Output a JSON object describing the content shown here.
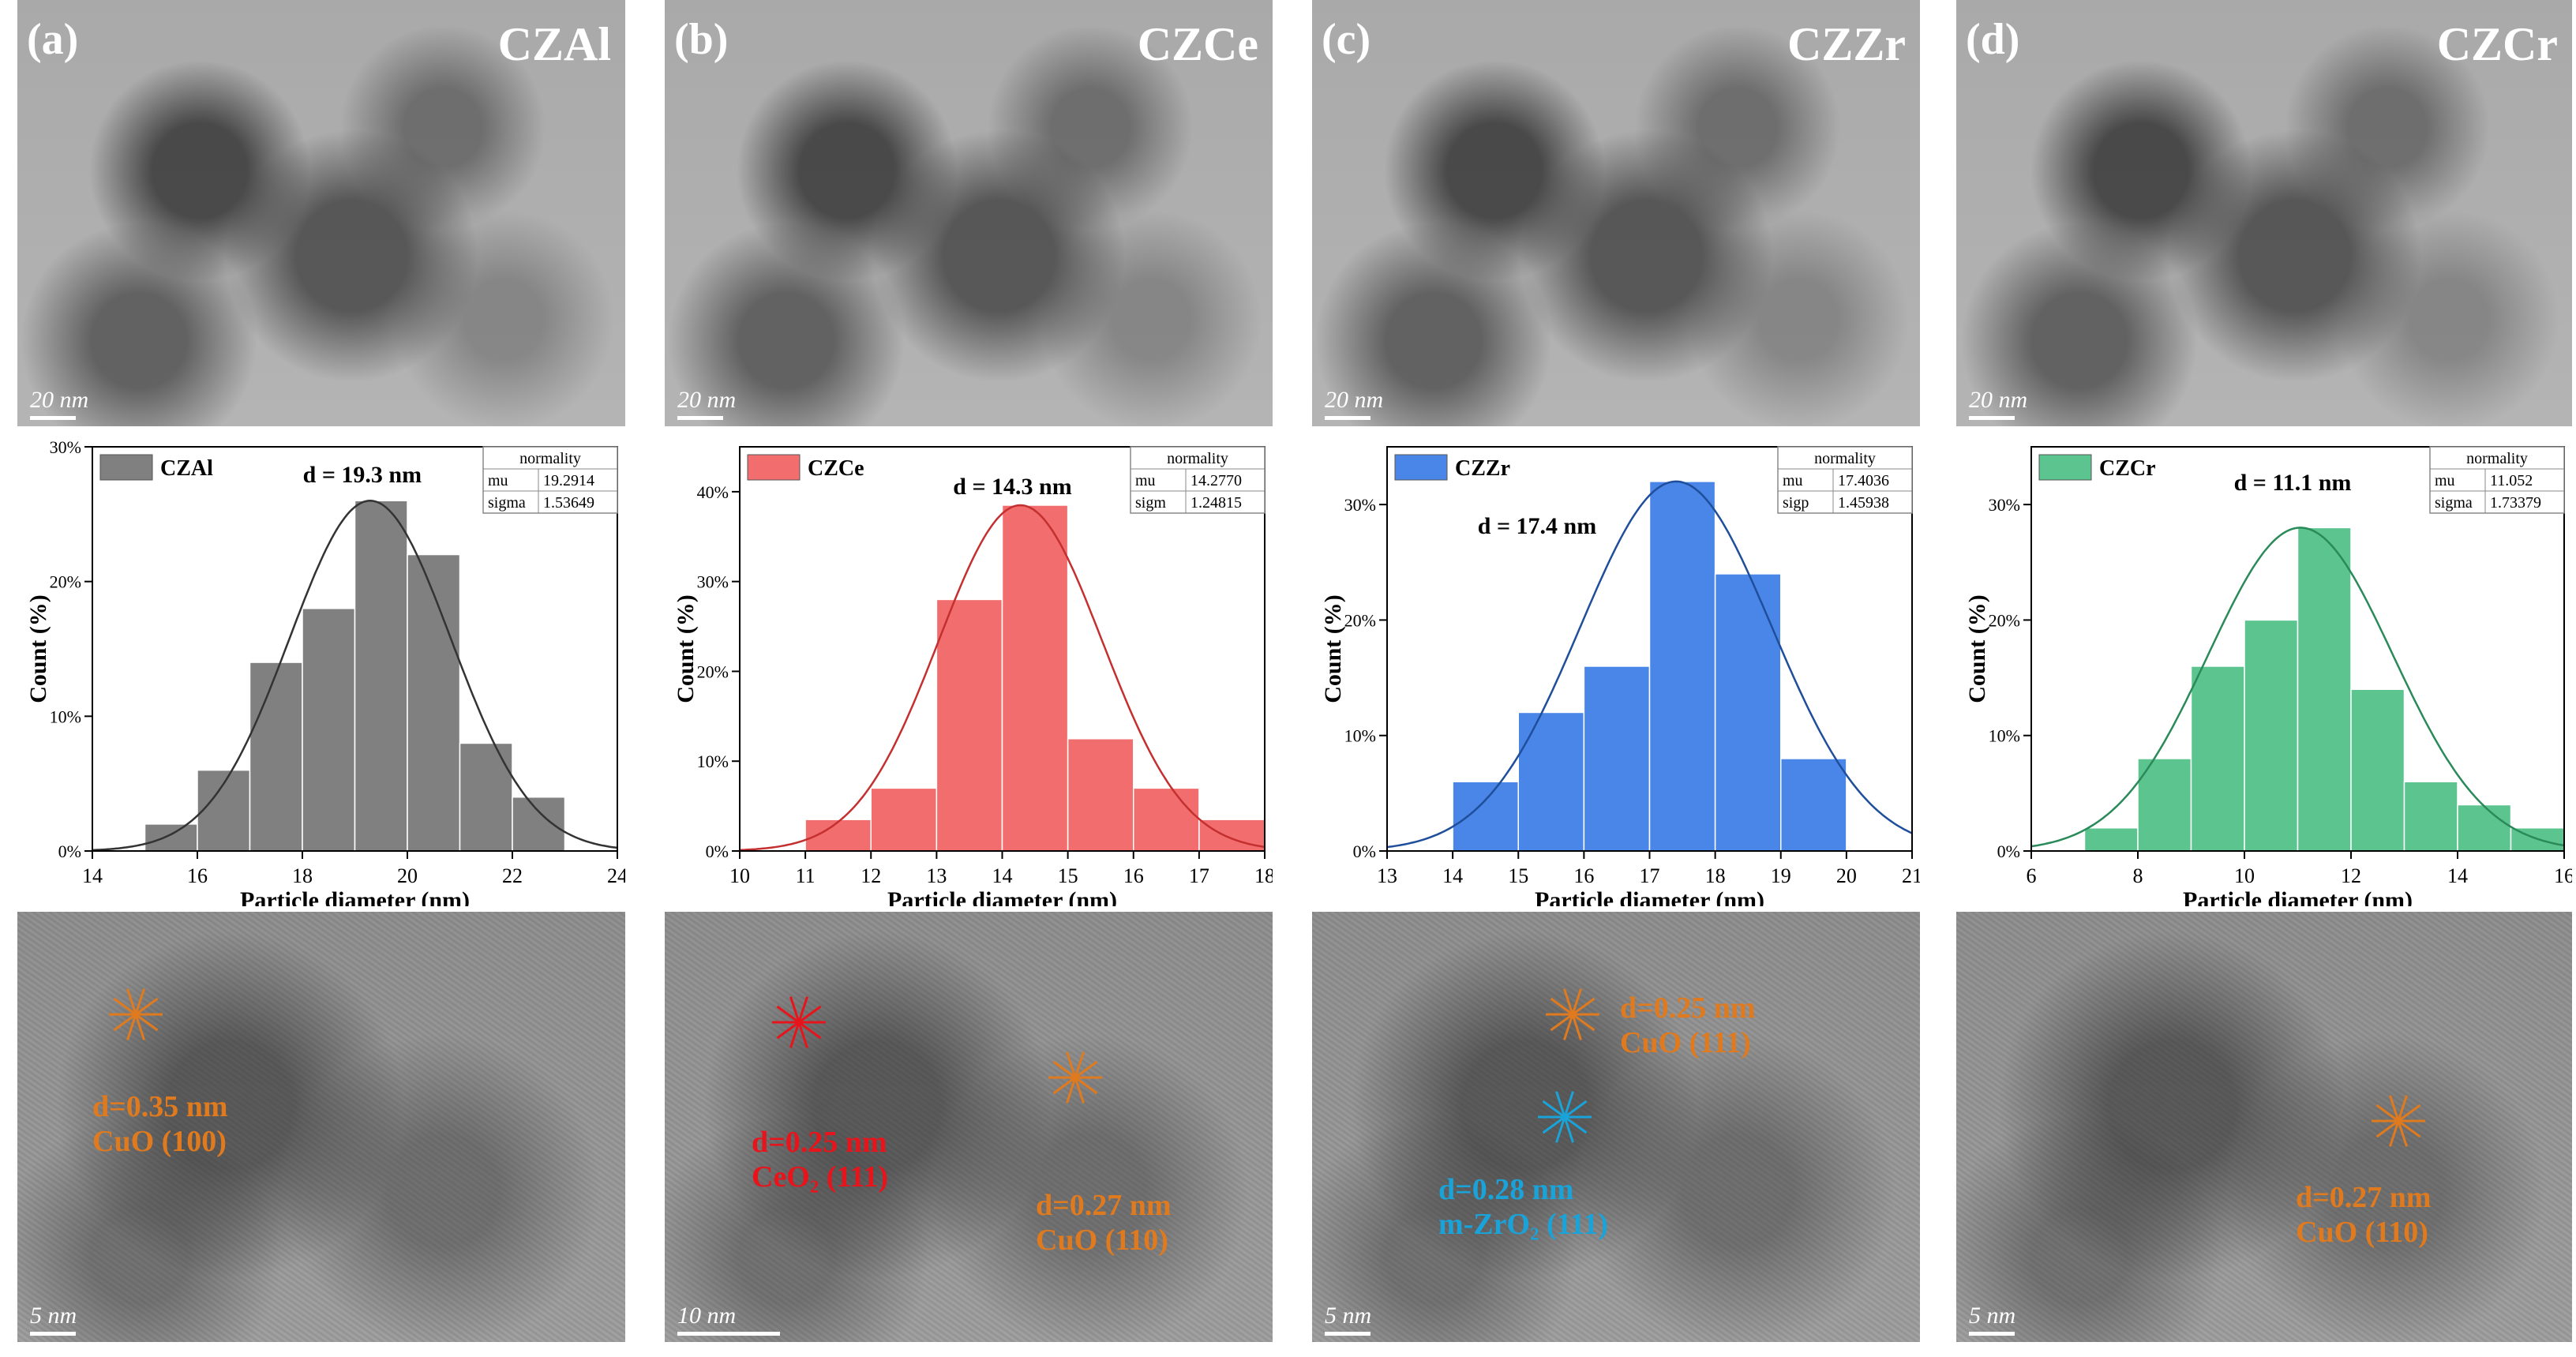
{
  "panels": [
    {
      "letter": "(a)",
      "sample": "CZAl",
      "tem_scale": "20 nm",
      "hrtem_scale": "5 nm",
      "annotations": [
        {
          "d": "d=0.35 nm",
          "plane": "CuO (100)",
          "color": "#e07a1f"
        }
      ]
    },
    {
      "letter": "(b)",
      "sample": "CZCe",
      "tem_scale": "20 nm",
      "hrtem_scale": "10 nm",
      "annotations": [
        {
          "d": "d=0.25 nm",
          "plane": "CeO₂ (111)",
          "color": "#e8141b"
        },
        {
          "d": "d=0.27 nm",
          "plane": "CuO (110)",
          "color": "#e07a1f"
        }
      ]
    },
    {
      "letter": "(c)",
      "sample": "CZZr",
      "tem_scale": "20 nm",
      "hrtem_scale": "5 nm",
      "annotations": [
        {
          "d": "d=0.25 nm",
          "plane": "CuO (111)",
          "color": "#e07a1f"
        },
        {
          "d": "d=0.28 nm",
          "plane": "m-ZrO₂ (111)",
          "color": "#1aa3d9"
        }
      ]
    },
    {
      "letter": "(d)",
      "sample": "CZCr",
      "tem_scale": "20 nm",
      "hrtem_scale": "5 nm",
      "annotations": [
        {
          "d": "d=0.27 nm",
          "plane": "CuO (110)",
          "color": "#e07a1f"
        }
      ]
    }
  ],
  "chart_data": [
    {
      "type": "bar",
      "legend": "CZAl",
      "color": "#808080",
      "line_color": "#333333",
      "annotation": "d = 19.3 nm",
      "table": {
        "header": "normality",
        "rows": [
          [
            "mu",
            "19.2914"
          ],
          [
            "sigma",
            "1.53649"
          ]
        ]
      },
      "bin_edges": [
        15,
        16,
        17,
        18,
        19,
        20,
        21,
        22,
        23
      ],
      "values": [
        2,
        6,
        14,
        18,
        26,
        22,
        8,
        4
      ],
      "fit": {
        "mu": 19.2914,
        "sigma": 1.53649,
        "peak": 26
      },
      "xlim": [
        14,
        24
      ],
      "xticks": [
        14,
        16,
        18,
        20,
        22,
        24
      ],
      "ylim": [
        0,
        30
      ],
      "yticks": [
        0,
        10,
        20,
        30
      ],
      "yticklabels": [
        "0%",
        "10%",
        "20%",
        "30%"
      ],
      "xlabel": "Particle diameter (nm)",
      "ylabel": "Count (%)"
    },
    {
      "type": "bar",
      "legend": "CZCe",
      "color": "#f26d6d",
      "line_color": "#c43030",
      "annotation": "d = 14.3 nm",
      "table": {
        "header": "normality",
        "rows": [
          [
            "mu",
            "14.2770"
          ],
          [
            "sigm",
            "1.24815"
          ]
        ]
      },
      "bin_edges": [
        11,
        12,
        13,
        14,
        15,
        16,
        17,
        18
      ],
      "values": [
        3.5,
        7,
        28,
        38.5,
        12.5,
        7,
        3.5
      ],
      "fit": {
        "mu": 14.277,
        "sigma": 1.24815,
        "peak": 38.5
      },
      "xlim": [
        10,
        18
      ],
      "xticks": [
        10,
        11,
        12,
        13,
        14,
        15,
        16,
        17,
        18
      ],
      "ylim": [
        0,
        45
      ],
      "yticks": [
        0,
        10,
        20,
        30,
        40
      ],
      "yticklabels": [
        "0%",
        "10%",
        "20%",
        "30%",
        "40%"
      ],
      "xlabel": "Particle diameter (nm)",
      "ylabel": "Count (%)"
    },
    {
      "type": "bar",
      "legend": "CZZr",
      "color": "#4a86e8",
      "line_color": "#1f4e9a",
      "annotation": "d = 17.4 nm",
      "table": {
        "header": "normality",
        "rows": [
          [
            "mu",
            "17.4036"
          ],
          [
            "sigp",
            "1.45938"
          ]
        ]
      },
      "bin_edges": [
        14,
        15,
        16,
        17,
        18,
        19,
        20
      ],
      "values": [
        6,
        12,
        16,
        32,
        24,
        8
      ],
      "fit": {
        "mu": 17.4036,
        "sigma": 1.45938,
        "peak": 32
      },
      "xlim": [
        13,
        21
      ],
      "xticks": [
        13,
        14,
        15,
        16,
        17,
        18,
        19,
        20,
        21
      ],
      "ylim": [
        0,
        35
      ],
      "yticks": [
        0,
        10,
        20,
        30
      ],
      "yticklabels": [
        "0%",
        "10%",
        "20%",
        "30%"
      ],
      "xlabel": "Particle diameter (nm)",
      "ylabel": "Count (%)"
    },
    {
      "type": "bar",
      "legend": "CZCr",
      "color": "#5cc48f",
      "line_color": "#2a8a59",
      "annotation": "d = 11.1 nm",
      "table": {
        "header": "normality",
        "rows": [
          [
            "mu",
            "11.052"
          ],
          [
            "sigma",
            "1.73379"
          ]
        ]
      },
      "bin_edges": [
        7,
        8,
        9,
        10,
        11,
        12,
        13,
        14,
        15,
        16
      ],
      "values": [
        2,
        8,
        16,
        20,
        28,
        14,
        6,
        4,
        2
      ],
      "fit": {
        "mu": 11.052,
        "sigma": 1.73379,
        "peak": 28
      },
      "xlim": [
        6,
        16
      ],
      "xticks": [
        6,
        8,
        10,
        12,
        14,
        16
      ],
      "ylim": [
        0,
        35
      ],
      "yticks": [
        0,
        10,
        20,
        30
      ],
      "yticklabels": [
        "0%",
        "10%",
        "20%",
        "30%"
      ],
      "xlabel": "Particle diameter (nm)",
      "ylabel": "Count (%)"
    }
  ]
}
